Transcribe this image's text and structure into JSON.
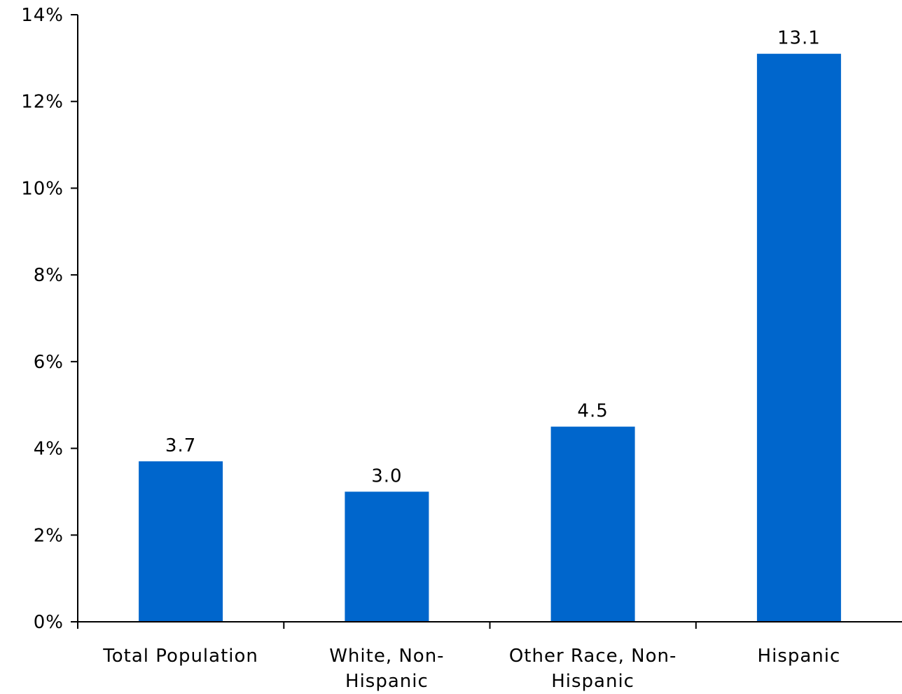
{
  "chart_data": {
    "type": "bar",
    "title": "",
    "xlabel": "",
    "ylabel": "",
    "categories": [
      [
        "Total Population"
      ],
      [
        "White, Non-",
        "Hispanic"
      ],
      [
        "Other Race, Non-",
        "Hispanic"
      ],
      [
        "Hispanic"
      ]
    ],
    "values": [
      3.7,
      3.0,
      4.5,
      13.1
    ],
    "value_labels": [
      "3.7",
      "3.0",
      "4.5",
      "13.1"
    ],
    "ylim": [
      0,
      14
    ],
    "yticks": [
      0,
      2,
      4,
      6,
      8,
      10,
      12,
      14
    ],
    "ytick_labels": [
      "0%",
      "2%",
      "4%",
      "6%",
      "8%",
      "10%",
      "12%",
      "14%"
    ],
    "grid": false,
    "legend": "none",
    "bar_color": "#0066CC"
  }
}
